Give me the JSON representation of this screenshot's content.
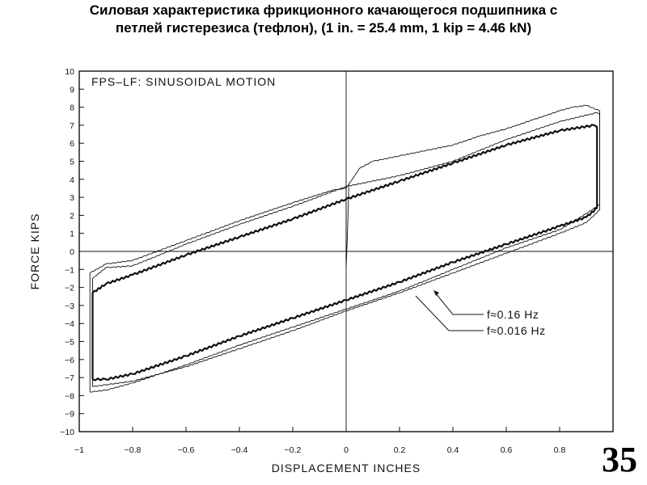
{
  "slide": {
    "title_line1": "Силовая характеристика фрикционного качающегося подшипника с",
    "title_line2": "петлей гистерезиса (тефлон), (1 in. = 25.4 mm, 1 kip = 4.46 kN)",
    "page_number": "35"
  },
  "chart_data": {
    "type": "line",
    "title": "FPS–LF:  SINUSOIDAL  MOTION",
    "xlabel": "DISPLACEMENT   INCHES",
    "ylabel": "FORCE    KIPS",
    "xlim": [
      -1,
      1
    ],
    "ylim": [
      -10,
      10
    ],
    "x_ticks": [
      -1,
      -0.8,
      -0.6,
      -0.4,
      -0.2,
      0,
      0.2,
      0.4,
      0.6,
      0.8
    ],
    "x_tick_labels": [
      "−1",
      "−0.8",
      "−0.6",
      "−0.4",
      "−0.2",
      "0",
      "0.2",
      "0.4",
      "0.6",
      "0.8"
    ],
    "y_ticks": [
      10,
      9,
      8,
      7,
      6,
      5,
      4,
      3,
      2,
      1,
      0,
      -1,
      -2,
      -3,
      -4,
      -5,
      -6,
      -7,
      -8,
      -9,
      -10
    ],
    "y_tick_labels": [
      "10",
      "9",
      "8",
      "7",
      "6",
      "5",
      "4",
      "3",
      "2",
      "1",
      "0",
      "−1",
      "−2",
      "−3",
      "−4",
      "−5",
      "−6",
      "−7",
      "−8",
      "−9",
      "−10"
    ],
    "grid": false,
    "reference_lines": {
      "x": 0,
      "y": 0
    },
    "annotations": [
      "f≈0.16  Hz",
      "f≈0.016  Hz"
    ],
    "series": [
      {
        "style": "bold",
        "x": [
          -0.95,
          -0.95,
          -0.9,
          -0.8,
          -0.6,
          -0.4,
          -0.2,
          0,
          0.2,
          0.4,
          0.6,
          0.8,
          0.93,
          0.94,
          0.94,
          0.9,
          0.8,
          0.6,
          0.4,
          0.2,
          0,
          -0.2,
          -0.4,
          -0.6,
          -0.8,
          -0.9,
          -0.95
        ],
        "y": [
          -7.1,
          -2.3,
          -1.8,
          -1.3,
          -0.2,
          0.8,
          1.8,
          2.9,
          3.9,
          4.9,
          5.9,
          6.7,
          7.0,
          6.9,
          2.4,
          1.9,
          1.4,
          0.4,
          -0.6,
          -1.7,
          -2.7,
          -3.7,
          -4.7,
          -5.8,
          -6.8,
          -7.1,
          -7.1
        ]
      },
      {
        "style": "thin",
        "x": [
          -0.96,
          -0.96,
          -0.9,
          -0.8,
          -0.6,
          -0.4,
          -0.2,
          -0.05,
          0,
          0.05,
          0.1,
          0.2,
          0.3,
          0.4,
          0.5,
          0.6,
          0.7,
          0.8,
          0.85,
          0.9,
          0.95,
          0.95,
          0.9,
          0.8,
          0.6,
          0.4,
          0.2,
          0,
          -0.2,
          -0.4,
          -0.6,
          -0.8,
          -0.9,
          -0.96
        ],
        "y": [
          -7.8,
          -1.2,
          -0.7,
          -0.5,
          0.6,
          1.7,
          2.7,
          3.4,
          3.5,
          4.6,
          5.0,
          5.3,
          5.6,
          5.9,
          6.4,
          6.8,
          7.3,
          7.8,
          8.0,
          8.1,
          7.8,
          2.6,
          2.1,
          1.2,
          0.2,
          -1.0,
          -2.2,
          -3.2,
          -4.2,
          -5.2,
          -6.3,
          -7.3,
          -7.7,
          -7.8
        ]
      },
      {
        "style": "thin",
        "x": [
          -0.95,
          -0.95,
          -0.9,
          -0.8,
          -0.6,
          -0.4,
          -0.2,
          0,
          0.2,
          0.4,
          0.6,
          0.8,
          0.94,
          0.95,
          0.95,
          0.9,
          0.8,
          0.6,
          0.4,
          0.2,
          0,
          -0.2,
          -0.4,
          -0.6,
          -0.8,
          -0.9,
          -0.95
        ],
        "y": [
          -7.5,
          -1.5,
          -0.9,
          -0.8,
          0.4,
          1.5,
          2.5,
          3.6,
          4.2,
          5.0,
          6.2,
          7.2,
          7.7,
          7.6,
          2.3,
          1.6,
          1.0,
          -0.1,
          -1.2,
          -2.3,
          -3.3,
          -4.4,
          -5.4,
          -6.4,
          -7.2,
          -7.4,
          -7.5
        ]
      },
      {
        "style": "thin",
        "x": [
          0,
          0,
          0.005,
          0.01
        ],
        "y": [
          3.5,
          -0.9,
          1.0,
          3.6
        ]
      }
    ]
  }
}
